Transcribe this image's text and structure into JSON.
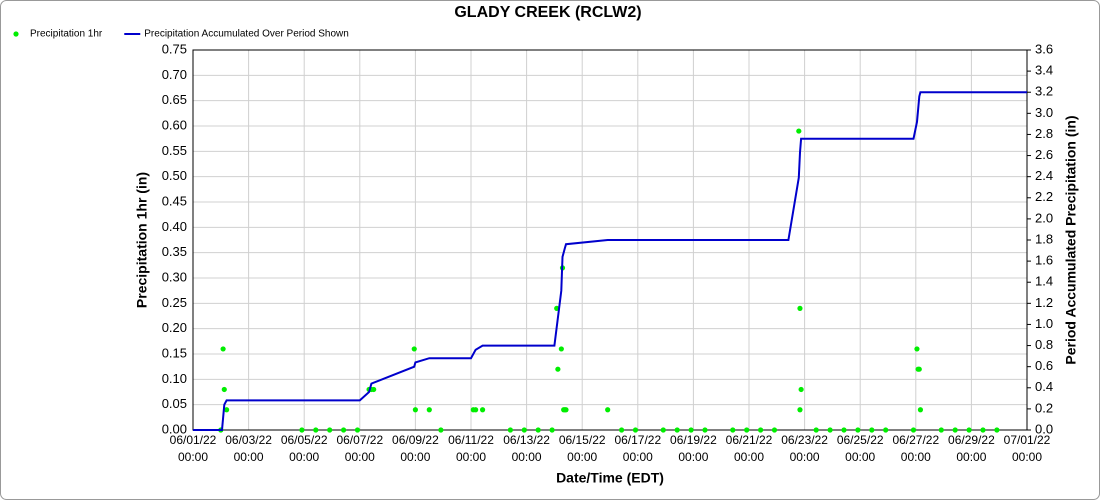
{
  "chart_data": {
    "type": "combo",
    "title": "GLADY CREEK (RCLW2)",
    "x_label": "Date/Time (EDT)",
    "y_label": "Precipitation 1hr (in)",
    "y2_label": "Period Accumulated Precipitation (in)",
    "grid": true,
    "legend": "top-left",
    "xlim": [
      "2022-06-01T00:00",
      "2022-07-01T00:00"
    ],
    "xticks": [
      {
        "value": "2022-06-01T00:00",
        "label": "06/01/22 00:00"
      },
      {
        "value": "2022-06-03T00:00",
        "label": "06/03/22 00:00"
      },
      {
        "value": "2022-06-05T00:00",
        "label": "06/05/22 00:00"
      },
      {
        "value": "2022-06-07T00:00",
        "label": "06/07/22 00:00"
      },
      {
        "value": "2022-06-09T00:00",
        "label": "06/09/22 00:00"
      },
      {
        "value": "2022-06-11T00:00",
        "label": "06/11/22 00:00"
      },
      {
        "value": "2022-06-13T00:00",
        "label": "06/13/22 00:00"
      },
      {
        "value": "2022-06-15T00:00",
        "label": "06/15/22 00:00"
      },
      {
        "value": "2022-06-17T00:00",
        "label": "06/17/22 00:00"
      },
      {
        "value": "2022-06-19T00:00",
        "label": "06/19/22 00:00"
      },
      {
        "value": "2022-06-21T00:00",
        "label": "06/21/22 00:00"
      },
      {
        "value": "2022-06-23T00:00",
        "label": "06/23/22 00:00"
      },
      {
        "value": "2022-06-25T00:00",
        "label": "06/25/22 00:00"
      },
      {
        "value": "2022-06-27T00:00",
        "label": "06/27/22 00:00"
      },
      {
        "value": "2022-06-29T00:00",
        "label": "06/29/22 00:00"
      },
      {
        "value": "2022-07-01T00:00",
        "label": "07/01/22 00:00"
      }
    ],
    "ylim": [
      0,
      0.75
    ],
    "yticks": [
      {
        "value": 0,
        "label": "0.00"
      },
      {
        "value": 0.05,
        "label": "0.05"
      },
      {
        "value": 0.1,
        "label": "0.10"
      },
      {
        "value": 0.15,
        "label": "0.15"
      },
      {
        "value": 0.2,
        "label": "0.20"
      },
      {
        "value": 0.25,
        "label": "0.25"
      },
      {
        "value": 0.3,
        "label": "0.30"
      },
      {
        "value": 0.35,
        "label": "0.35"
      },
      {
        "value": 0.4,
        "label": "0.40"
      },
      {
        "value": 0.45,
        "label": "0.45"
      },
      {
        "value": 0.5,
        "label": "0.50"
      },
      {
        "value": 0.55,
        "label": "0.55"
      },
      {
        "value": 0.6,
        "label": "0.60"
      },
      {
        "value": 0.65,
        "label": "0.65"
      },
      {
        "value": 0.7,
        "label": "0.70"
      },
      {
        "value": 0.75,
        "label": "0.75"
      }
    ],
    "y2lim": [
      0,
      3.6
    ],
    "y2ticks": [
      {
        "value": 0,
        "label": "0.0"
      },
      0.2,
      0.4,
      0.6,
      0.8,
      {
        "value": 1,
        "label": "1.0"
      },
      1.2,
      1.4,
      1.6,
      1.8,
      {
        "value": 2,
        "label": "2.0"
      },
      2.2,
      2.4,
      2.6,
      2.8,
      {
        "value": 3,
        "label": "3.0"
      },
      3.2,
      3.4,
      3.6
    ],
    "series": [
      {
        "name": "Precipitation 1hr",
        "type": "scatter",
        "color": "#00ee00",
        "axis": "y",
        "x": [
          "2022-06-02T00:00",
          "2022-06-02T02:00",
          "2022-06-02T03:00",
          "2022-06-02T05:00",
          "2022-06-04T22:00",
          "2022-06-05T10:00",
          "2022-06-05T22:00",
          "2022-06-06T10:00",
          "2022-06-06T22:00",
          "2022-06-07T08:00",
          "2022-06-07T10:00",
          "2022-06-07T12:00",
          "2022-06-08T23:00",
          "2022-06-09T00:00",
          "2022-06-09T12:00",
          "2022-06-09T22:00",
          "2022-06-11T02:00",
          "2022-06-11T04:00",
          "2022-06-11T10:00",
          "2022-06-12T10:00",
          "2022-06-12T22:00",
          "2022-06-13T10:00",
          "2022-06-13T22:00",
          "2022-06-14T02:00",
          "2022-06-14T03:00",
          "2022-06-14T06:00",
          "2022-06-14T07:00",
          "2022-06-14T08:00",
          "2022-06-14T09:00",
          "2022-06-14T10:00",
          "2022-06-15T22:00",
          "2022-06-16T10:00",
          "2022-06-16T22:00",
          "2022-06-17T22:00",
          "2022-06-18T10:00",
          "2022-06-18T22:00",
          "2022-06-19T10:00",
          "2022-06-20T10:00",
          "2022-06-20T22:00",
          "2022-06-21T10:00",
          "2022-06-21T22:00",
          "2022-06-22T19:00",
          "2022-06-22T20:00",
          "2022-06-22T20:00",
          "2022-06-22T21:00",
          "2022-06-23T10:00",
          "2022-06-23T22:00",
          "2022-06-24T10:00",
          "2022-06-24T22:00",
          "2022-06-25T10:00",
          "2022-06-25T22:00",
          "2022-06-26T22:00",
          "2022-06-27T01:00",
          "2022-06-27T02:00",
          "2022-06-27T03:00",
          "2022-06-27T04:00",
          "2022-06-27T22:00",
          "2022-06-28T10:00",
          "2022-06-28T22:00",
          "2022-06-29T10:00",
          "2022-06-29T22:00"
        ],
        "values": [
          0,
          0.16,
          0.08,
          0.04,
          0,
          0,
          0,
          0,
          0,
          0.08,
          0.08,
          0.08,
          0.16,
          0.04,
          0.04,
          0,
          0.04,
          0.04,
          0.04,
          0,
          0,
          0,
          0,
          0.24,
          0.12,
          0.16,
          0.32,
          0.04,
          0.04,
          0.04,
          0.04,
          0,
          0,
          0,
          0,
          0,
          0,
          0,
          0,
          0,
          0,
          0.59,
          0.24,
          0.04,
          0.08,
          0,
          0,
          0,
          0,
          0,
          0,
          0,
          0.16,
          0.12,
          0.12,
          0.04,
          0,
          0,
          0,
          0,
          0
        ]
      },
      {
        "name": "Precipitation Accumulated Over Period Shown",
        "type": "line",
        "color": "#0000cc",
        "axis": "y2",
        "x": [
          "2022-06-01T00:00",
          "2022-06-02T01:00",
          "2022-06-02T03:00",
          "2022-06-02T05:00",
          "2022-06-07T00:00",
          "2022-06-07T08:00",
          "2022-06-07T10:00",
          "2022-06-08T23:00",
          "2022-06-09T00:00",
          "2022-06-09T12:00",
          "2022-06-11T00:00",
          "2022-06-11T04:00",
          "2022-06-11T10:00",
          "2022-06-14T00:00",
          "2022-06-14T06:00",
          "2022-06-14T07:00",
          "2022-06-14T09:00",
          "2022-06-14T10:00",
          "2022-06-15T22:00",
          "2022-06-22T10:00",
          "2022-06-22T19:00",
          "2022-06-22T20:00",
          "2022-06-22T21:00",
          "2022-06-26T22:00",
          "2022-06-27T01:00",
          "2022-06-27T03:00",
          "2022-06-27T04:00",
          "2022-07-01T00:00"
        ],
        "values": [
          0,
          0,
          0.24,
          0.28,
          0.28,
          0.36,
          0.44,
          0.6,
          0.64,
          0.68,
          0.68,
          0.76,
          0.8,
          0.8,
          1.32,
          1.64,
          1.72,
          1.76,
          1.8,
          1.8,
          2.39,
          2.63,
          2.76,
          2.76,
          2.92,
          3.16,
          3.2,
          3.2
        ]
      }
    ]
  }
}
